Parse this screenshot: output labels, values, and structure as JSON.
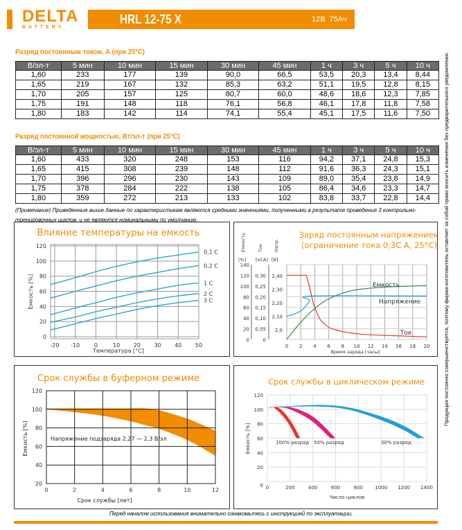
{
  "header": {
    "logo_main": "DELTA",
    "logo_sub": "BATTERY",
    "model": "HRL 12-75 X",
    "voltage": "12В",
    "capacity": "75Ач"
  },
  "table_current": {
    "title": "Разряд постоянным током, А (при 25°С)",
    "columns": [
      "В/эл-т",
      "5 мин",
      "10 мин",
      "15 мин",
      "30 мин",
      "45 мин",
      "1 ч",
      "3 ч",
      "5 ч",
      "10 ч"
    ],
    "rows": [
      [
        "1,60",
        "233",
        "177",
        "139",
        "90,0",
        "66,5",
        "53,5",
        "20,3",
        "13,4",
        "8,44"
      ],
      [
        "1,65",
        "219",
        "167",
        "132",
        "85,3",
        "63,2",
        "51,1",
        "19,5",
        "12,8",
        "8,15"
      ],
      [
        "1,70",
        "205",
        "157",
        "125",
        "80,7",
        "60,0",
        "48,6",
        "18,6",
        "12,3",
        "7,85"
      ],
      [
        "1,75",
        "191",
        "148",
        "118",
        "76,1",
        "56,8",
        "46,1",
        "17,8",
        "11,8",
        "7,58"
      ],
      [
        "1,80",
        "183",
        "142",
        "114",
        "74,1",
        "55,4",
        "45,1",
        "17,5",
        "11,6",
        "7,50"
      ]
    ]
  },
  "table_power": {
    "title": "Разряд постоянной мощностью, Вт/эл-т (при 25°С)",
    "columns": [
      "В/эл-т",
      "5 мин",
      "10 мин",
      "15 мин",
      "30 мин",
      "45 мин",
      "1 ч",
      "3 ч",
      "5 ч",
      "10 ч"
    ],
    "rows": [
      [
        "1,60",
        "433",
        "320",
        "248",
        "153",
        "116",
        "94,2",
        "37,1",
        "24,8",
        "15,3"
      ],
      [
        "1,65",
        "415",
        "308",
        "239",
        "148",
        "112",
        "91,6",
        "36,3",
        "24,3",
        "15,1"
      ],
      [
        "1,70",
        "396",
        "296",
        "230",
        "143",
        "109",
        "89,0",
        "35,4",
        "23,8",
        "14,9"
      ],
      [
        "1,75",
        "378",
        "284",
        "222",
        "138",
        "105",
        "86,4",
        "34,6",
        "23,3",
        "14,7"
      ],
      [
        "1,80",
        "359",
        "272",
        "213",
        "133",
        "102",
        "83,8",
        "33,7",
        "22,8",
        "14,4"
      ]
    ]
  },
  "note": "(Примечание) Приведенные выше данные по характеристикам являются средними значениями, полученными в результате проведения 3 контрольно-тренировочных циклов, и не являются номинальными по умолчанию.",
  "side_text": "Продукция постоянно совершенствуется, поэтому фирма-изготовитель оставляет за собой право вносить изменения без предварительного уведомления.",
  "footer": "Перед началом использования внимательно ознакомьтесь с инструкцией по эксплуатации.",
  "colors": {
    "accent": "#f28c00",
    "blue": "#2aa6d6",
    "green": "#3c8c4a",
    "red": "#e8362c",
    "magenta": "#e0207a",
    "cyan": "#1ea0d8"
  },
  "chart_data": [
    {
      "type": "line",
      "title": "Влияние температуры на емкость",
      "xlabel": "Температура [°C]",
      "ylabel": "Емкость [%]",
      "xlim": [
        -22,
        50
      ],
      "ylim": [
        0,
        120
      ],
      "xticks": [
        -20,
        -10,
        0,
        10,
        20,
        30,
        40,
        50
      ],
      "yticks": [
        0,
        20,
        40,
        60,
        80,
        100,
        120
      ],
      "x": [
        -22,
        -10,
        0,
        10,
        20,
        30,
        40,
        50
      ],
      "series": [
        {
          "name": "0,1 C",
          "values": [
            69,
            78,
            86,
            93,
            99,
            104,
            108,
            112
          ]
        },
        {
          "name": "0,2 C",
          "values": [
            51,
            60,
            67,
            74,
            80,
            85,
            90,
            94
          ]
        },
        {
          "name": "1 C",
          "values": [
            29,
            38,
            45,
            52,
            58,
            63,
            68,
            71
          ]
        },
        {
          "name": "2 C",
          "values": [
            19,
            26,
            33,
            39,
            45,
            50,
            54,
            57
          ]
        },
        {
          "name": "3 C",
          "values": [
            9,
            17,
            24,
            30,
            36,
            41,
            45,
            48
          ]
        }
      ]
    },
    {
      "type": "line",
      "title": [
        "Заряд постоянным напряжением",
        "(ограничение тока 0,3С А, 25°С)"
      ],
      "xlabel": "Время заряда [часы]",
      "axes": [
        {
          "name": "Емкость",
          "unit": "[%]",
          "ticks": [
            "0",
            "20",
            "40",
            "60",
            "80",
            "100",
            "120",
            "140"
          ]
        },
        {
          "name": "Ток",
          "unit": "[хСА]",
          "ticks": [
            "0",
            "0,05",
            "0,10",
            "0,15",
            "0,20",
            "0,25",
            "0,30"
          ]
        },
        {
          "name": "Напр.",
          "unit": "[В]",
          "ticks": [
            "2,0",
            "2,10",
            "2,20",
            "2,30",
            "2,40"
          ]
        }
      ],
      "xlim": [
        0,
        20
      ],
      "xticks": [
        0,
        2,
        4,
        6,
        8,
        10,
        12,
        14,
        16,
        18,
        20
      ],
      "series": [
        {
          "name": "Ток",
          "axis": "current",
          "x": [
            0,
            2.8,
            3.3,
            3.8,
            4.5,
            5,
            6,
            7,
            8,
            10,
            12,
            14,
            16,
            20
          ],
          "values": [
            0.3,
            0.3,
            0.24,
            0.17,
            0.11,
            0.085,
            0.057,
            0.045,
            0.037,
            0.027,
            0.022,
            0.019,
            0.017,
            0.012
          ]
        },
        {
          "name": "Напряжение",
          "axis": "voltage",
          "x": [
            0,
            1,
            2,
            2.8,
            3.3,
            3.6,
            20
          ],
          "values": [
            2.1,
            2.115,
            2.14,
            2.18,
            2.22,
            2.25,
            2.25
          ]
        },
        {
          "name": "Емкость",
          "axis": "capacity",
          "x": [
            0,
            1,
            2,
            3,
            4,
            5,
            6,
            8,
            10,
            12,
            14,
            16,
            20
          ],
          "values": [
            0,
            17,
            32,
            46,
            58,
            68,
            76,
            87,
            93,
            96,
            98,
            99,
            101
          ]
        }
      ]
    },
    {
      "type": "area",
      "title": "Срок службы в буферном режиме",
      "xlabel": "Срок службы [лет]",
      "ylabel": "Емкость [%]",
      "annotation": "Напряжение подзаряда 2,27 — 2,3 В/эл",
      "xlim": [
        0,
        12
      ],
      "ylim": [
        20,
        120
      ],
      "xticks": [
        0,
        2,
        4,
        6,
        8,
        10,
        12
      ],
      "yticks": [
        20,
        40,
        60,
        80,
        100,
        120
      ],
      "x": [
        0,
        2,
        4,
        6,
        7,
        8,
        10,
        12
      ],
      "upper": [
        101,
        101,
        101,
        101,
        101,
        99,
        90,
        77
      ],
      "lower": [
        100,
        97,
        93,
        87,
        83,
        79,
        67,
        50
      ]
    },
    {
      "type": "area",
      "title": "Срок службы в циклическом режиме",
      "xlabel": "Число циклов",
      "ylabel": "Емкость [%]",
      "xlim": [
        0,
        1400
      ],
      "ylim": [
        0,
        120
      ],
      "xticks": [
        0,
        200,
        400,
        600,
        800,
        1000,
        1200,
        1400
      ],
      "yticks": [
        20,
        40,
        60,
        80,
        100,
        120
      ],
      "series": [
        {
          "name": "100% разряд",
          "upper": [
            [
              0,
              102
            ],
            [
              100,
              102
            ],
            [
              200,
              85
            ],
            [
              290,
              60
            ]
          ],
          "lower": [
            [
              0,
              102
            ],
            [
              60,
              102
            ],
            [
              170,
              84
            ],
            [
              255,
              60
            ]
          ]
        },
        {
          "name": "50% разряд",
          "upper": [
            [
              40,
              103
            ],
            [
              200,
              103
            ],
            [
              400,
              90
            ],
            [
              600,
              60
            ]
          ],
          "lower": [
            [
              40,
              103
            ],
            [
              180,
              101
            ],
            [
              380,
              85
            ],
            [
              555,
              60
            ]
          ]
        },
        {
          "name": "30% разряд",
          "upper": [
            [
              0,
              102
            ],
            [
              400,
              106
            ],
            [
              700,
              103
            ],
            [
              1000,
              90
            ],
            [
              1200,
              77
            ],
            [
              1380,
              60
            ]
          ],
          "lower": [
            [
              0,
              102
            ],
            [
              400,
              104
            ],
            [
              700,
              100
            ],
            [
              1000,
              85
            ],
            [
              1200,
              71
            ],
            [
              1320,
              60
            ]
          ]
        }
      ]
    }
  ]
}
